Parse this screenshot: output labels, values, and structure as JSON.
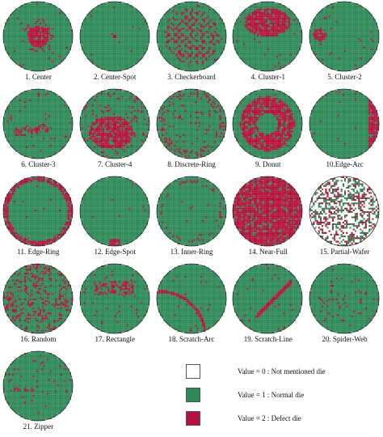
{
  "colors": {
    "not_mentioned": "#ffffff",
    "normal": "#2e8a57",
    "defect": "#b8123c",
    "outline": "#333333"
  },
  "wafers": [
    {
      "index": 1,
      "label": "1. Center",
      "pattern": "center"
    },
    {
      "index": 2,
      "label": "2. Center-Spot",
      "pattern": "center-spot"
    },
    {
      "index": 3,
      "label": "3. Checkerboard",
      "pattern": "checkerboard"
    },
    {
      "index": 4,
      "label": "4. Cluster-1",
      "pattern": "cluster-1"
    },
    {
      "index": 5,
      "label": "5. Cluster-2",
      "pattern": "cluster-2"
    },
    {
      "index": 6,
      "label": "6. Cluster-3",
      "pattern": "cluster-3"
    },
    {
      "index": 7,
      "label": "7. Cluster-4",
      "pattern": "cluster-4"
    },
    {
      "index": 8,
      "label": "8. Discrete-Ring",
      "pattern": "discrete-ring"
    },
    {
      "index": 9,
      "label": "9. Donut",
      "pattern": "donut"
    },
    {
      "index": 10,
      "label": "10.Edge-Arc",
      "pattern": "edge-arc"
    },
    {
      "index": 11,
      "label": "11. Edge-Ring",
      "pattern": "edge-ring"
    },
    {
      "index": 12,
      "label": "12. Edge-Spot",
      "pattern": "edge-spot"
    },
    {
      "index": 13,
      "label": "13. Inner-Ring",
      "pattern": "inner-ring"
    },
    {
      "index": 14,
      "label": "14. Near-Full",
      "pattern": "near-full"
    },
    {
      "index": 15,
      "label": "15. Partial-Wafer",
      "pattern": "partial-wafer"
    },
    {
      "index": 16,
      "label": "16. Random",
      "pattern": "random"
    },
    {
      "index": 17,
      "label": "17. Rectangle",
      "pattern": "rectangle"
    },
    {
      "index": 18,
      "label": "18. Scratch-Arc",
      "pattern": "scratch-arc"
    },
    {
      "index": 19,
      "label": "19. Scratch-Line",
      "pattern": "scratch-line"
    },
    {
      "index": 20,
      "label": "20. Spider-Web",
      "pattern": "spider-web"
    },
    {
      "index": 21,
      "label": "21. Zipper",
      "pattern": "zipper"
    }
  ],
  "legend": [
    {
      "value": 0,
      "label": "Value = 0 : Not mentioned die",
      "color": "#ffffff"
    },
    {
      "value": 1,
      "label": "Value = 1 : Normal die",
      "color": "#2e8a57"
    },
    {
      "value": 2,
      "label": "Value = 2 : Defect die",
      "color": "#b8123c"
    }
  ]
}
